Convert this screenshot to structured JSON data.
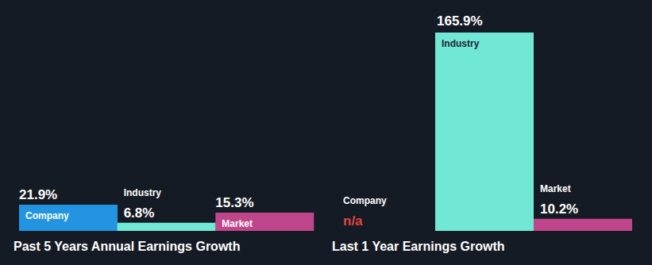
{
  "chart_data": [
    {
      "type": "bar",
      "title": "Past 5 Years Annual Earnings Growth",
      "categories": [
        "Company",
        "Industry",
        "Market"
      ],
      "values": [
        21.9,
        6.8,
        15.3
      ],
      "value_labels": [
        "21.9%",
        "6.8%",
        "15.3%"
      ],
      "colors": [
        "#2394df",
        "#71e7d6",
        "#c0468b"
      ],
      "data_labels": true,
      "tick_labels": false
    },
    {
      "type": "bar",
      "title": "Last 1 Year Earnings Growth",
      "categories": [
        "Company",
        "Industry",
        "Market"
      ],
      "values": [
        null,
        165.9,
        10.2
      ],
      "value_labels": [
        "n/a",
        "165.9%",
        "10.2%"
      ],
      "colors": [
        "#2394df",
        "#71e7d6",
        "#c0468b"
      ],
      "data_labels": true,
      "tick_labels": false
    }
  ]
}
